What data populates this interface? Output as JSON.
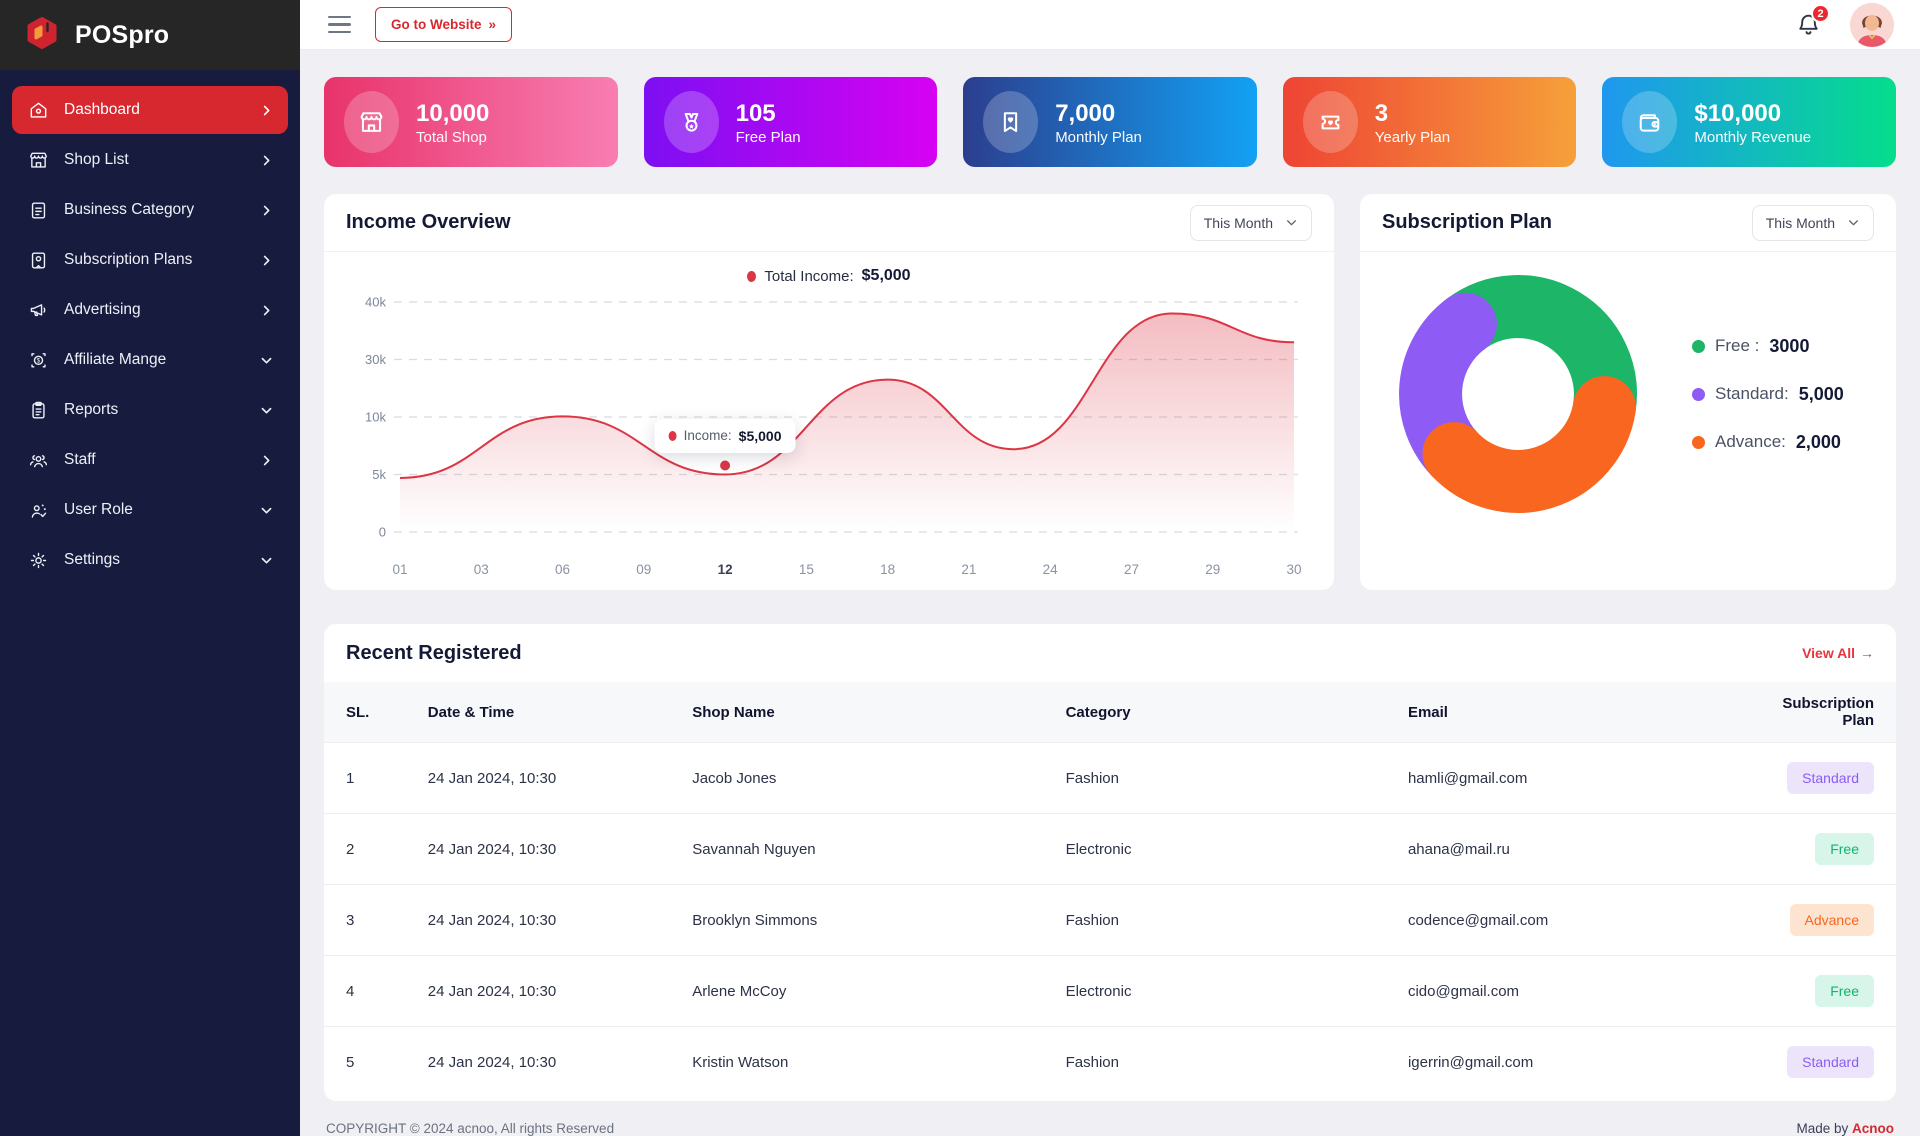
{
  "brand": {
    "name": "POSpro",
    "accent_red": "#d7282f"
  },
  "topbar": {
    "go_to_website": "Go to Website",
    "go_arrow": "»",
    "notification_count": "2"
  },
  "sidebar": {
    "items": [
      {
        "label": "Dashboard",
        "icon": "home-icon",
        "chevron": "right",
        "active": true
      },
      {
        "label": "Shop List",
        "icon": "shop-icon",
        "chevron": "right",
        "active": false
      },
      {
        "label": "Business Category",
        "icon": "document-icon",
        "chevron": "right",
        "active": false
      },
      {
        "label": "Subscription Plans",
        "icon": "subscription-card-icon",
        "chevron": "right",
        "active": false
      },
      {
        "label": "Advertising",
        "icon": "megaphone-icon",
        "chevron": "right",
        "active": false
      },
      {
        "label": "Affiliate Mange",
        "icon": "affiliate-dollar-icon",
        "chevron": "down",
        "active": false
      },
      {
        "label": "Reports",
        "icon": "clipboard-icon",
        "chevron": "down",
        "active": false
      },
      {
        "label": "Staff",
        "icon": "users-icon",
        "chevron": "right",
        "active": false
      },
      {
        "label": "User Role",
        "icon": "user-gear-icon",
        "chevron": "down",
        "active": false
      },
      {
        "label": "Settings",
        "icon": "gear-icon",
        "chevron": "down",
        "active": false
      }
    ]
  },
  "stats": [
    {
      "value": "10,000",
      "label": "Total Shop",
      "icon": "storefront-icon",
      "color_from": "#e8336b",
      "color_to": "#f87eb2"
    },
    {
      "value": "105",
      "label": "Free Plan",
      "icon": "medal-icon",
      "color_from": "#7d0ff2",
      "color_to": "#d602f2"
    },
    {
      "value": "7,000",
      "label": "Monthly Plan",
      "icon": "ribbon-heart-icon",
      "color_from": "#2c3e8e",
      "color_to": "#12a1f4"
    },
    {
      "value": "3",
      "label": "Yearly Plan",
      "icon": "ticket-heart-icon",
      "color_from": "#ee4434",
      "color_to": "#f6a03a"
    },
    {
      "value": "$10,000",
      "label": "Monthly Revenue",
      "icon": "wallet-icon",
      "color_from": "#1f97ef",
      "color_to": "#05dd8c"
    }
  ],
  "income_overview": {
    "title": "Income Overview",
    "range": "This Month"
  },
  "subscription_plan": {
    "title": "Subscription Plan",
    "range": "This Month"
  },
  "chart_data": [
    {
      "type": "area",
      "title": "Income Overview",
      "legend": {
        "label": "Total Income:",
        "value": "$5,000"
      },
      "x_ticks": [
        "01",
        "03",
        "06",
        "09",
        "12",
        "15",
        "18",
        "21",
        "24",
        "27",
        "29",
        "30"
      ],
      "y_ticks": [
        "40k",
        "30k",
        "10k",
        "5k",
        "0"
      ],
      "y_grid_values": [
        40000,
        30000,
        10000,
        5000,
        0
      ],
      "grid": "dashed",
      "series": [
        {
          "name": "Income",
          "color": "#dc3545",
          "points": [
            {
              "t": 0,
              "v": 4700
            },
            {
              "t": 2,
              "v": 10200
            },
            {
              "t": 4,
              "v": 5000
            },
            {
              "t": 6,
              "v": 23000
            },
            {
              "t": 7.55,
              "v": 7200
            },
            {
              "t": 9.5,
              "v": 38000
            },
            {
              "t": 11,
              "v": 33000
            }
          ]
        }
      ],
      "tooltip": {
        "x_tick": "12",
        "label": "Income:",
        "value": "$5,000",
        "v": 5000
      },
      "highlight_x_tick": "12"
    },
    {
      "type": "donut",
      "title": "Subscription Plan",
      "legend_position": "right",
      "slices": [
        {
          "label": "Free",
          "legend_label": "Free :",
          "value": "3000",
          "color": "#1db567",
          "start_deg": 323,
          "sweep_deg": 136,
          "z": 0
        },
        {
          "label": "Standard",
          "legend_label": "Standard:",
          "value": "5,000",
          "color": "#8e5bf5",
          "start_deg": 227,
          "sweep_deg": 96,
          "z": 1
        },
        {
          "label": "Advance",
          "legend_label": "Advance:",
          "value": "2,000",
          "color": "#f9661f",
          "start_deg": 99,
          "sweep_deg": 128,
          "z": 2
        }
      ]
    }
  ],
  "recent": {
    "title": "Recent Registered",
    "view_all": "View All",
    "view_all_arrow": "→",
    "columns": [
      "SL.",
      "Date & Time",
      "Shop Name",
      "Category",
      "Email",
      "Subscription Plan"
    ],
    "rows": [
      {
        "sl": "1",
        "date": "24 Jan 2024, 10:30",
        "shop": "Jacob Jones",
        "category": "Fashion",
        "email": "hamli@gmail.com",
        "plan": "Standard"
      },
      {
        "sl": "2",
        "date": "24 Jan 2024, 10:30",
        "shop": "Savannah Nguyen",
        "category": "Electronic",
        "email": "ahana@mail.ru",
        "plan": "Free"
      },
      {
        "sl": "3",
        "date": "24 Jan 2024, 10:30",
        "shop": "Brooklyn Simmons",
        "category": "Fashion",
        "email": "codence@gmail.com",
        "plan": "Advance"
      },
      {
        "sl": "4",
        "date": "24 Jan 2024, 10:30",
        "shop": "Arlene McCoy",
        "category": "Electronic",
        "email": "cido@gmail.com",
        "plan": "Free"
      },
      {
        "sl": "5",
        "date": "24 Jan 2024, 10:30",
        "shop": "Kristin Watson",
        "category": "Fashion",
        "email": "igerrin@gmail.com",
        "plan": "Standard"
      }
    ]
  },
  "footer": {
    "copyright": "COPYRIGHT © 2024 acnoo, All rights Reserved",
    "made_by": "Made by",
    "made_by_brand": "Acnoo"
  }
}
